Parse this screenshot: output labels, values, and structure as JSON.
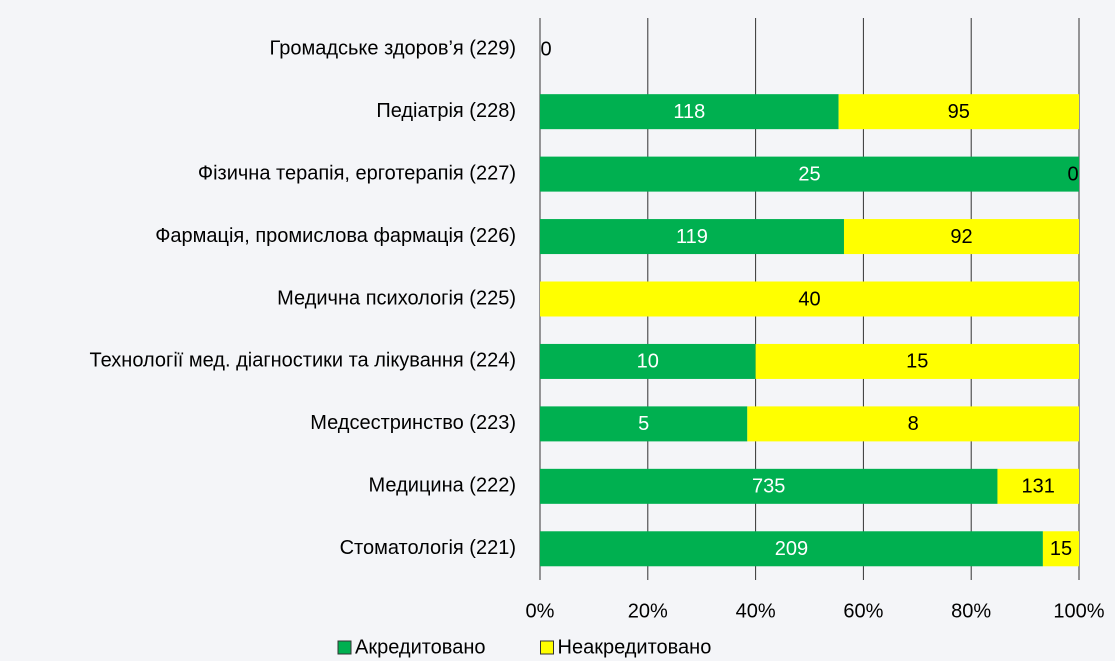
{
  "chart_data": {
    "type": "bar",
    "orientation": "horizontal",
    "stack": "percent",
    "categories": [
      "Громадське здоров’я (229)",
      "Педіатрія (228)",
      "Фізична терапія, ерготерапія (227)",
      "Фармація, промислова фармація (226)",
      "Медична психологія (225)",
      "Технології мед. діагностики та лікування (224)",
      "Медсестринство (223)",
      "Медицина (222)",
      "Стоматологія (221)"
    ],
    "series": [
      {
        "name": "Акредитовано",
        "color": "#00b050",
        "values": [
          0,
          118,
          25,
          119,
          0,
          10,
          5,
          735,
          209
        ]
      },
      {
        "name": "Неакредитовано",
        "color": "#ffff00",
        "values": [
          null,
          95,
          0,
          92,
          40,
          15,
          8,
          131,
          15
        ]
      }
    ],
    "xlim": [
      0,
      100
    ],
    "xticks": [
      {
        "value": 0,
        "label": "0%"
      },
      {
        "value": 20,
        "label": "20%"
      },
      {
        "value": 40,
        "label": "40%"
      },
      {
        "value": 60,
        "label": "60%"
      },
      {
        "value": 80,
        "label": "80%"
      },
      {
        "value": 100,
        "label": "100%"
      }
    ],
    "grid": true,
    "legend": "bottom"
  }
}
